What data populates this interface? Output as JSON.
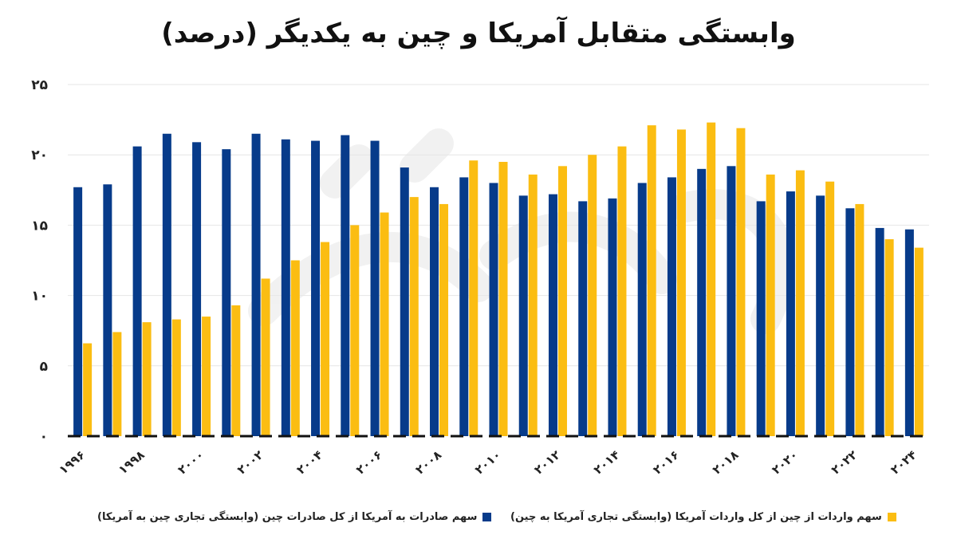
{
  "chart_data": {
    "type": "bar",
    "title": "وابستگی متقابل آمریکا و چین به یکدیگر (درصد)",
    "categories": [
      "1996",
      "1997",
      "1998",
      "1999",
      "2000",
      "2001",
      "2002",
      "2003",
      "2004",
      "2005",
      "2006",
      "2007",
      "2008",
      "2009",
      "2010",
      "2011",
      "2012",
      "2013",
      "2014",
      "2015",
      "2016",
      "2017",
      "2018",
      "2019",
      "2020",
      "2021",
      "2022",
      "2023",
      "2024"
    ],
    "x_tick_labels": [
      "۱۹۹۶",
      "۱۹۹۸",
      "۲۰۰۰",
      "۲۰۰۲",
      "۲۰۰۴",
      "۲۰۰۶",
      "۲۰۰۸",
      "۲۰۱۰",
      "۲۰۱۲",
      "۲۰۱۴",
      "۲۰۱۶",
      "۲۰۱۸",
      "۲۰۲۰",
      "۲۰۲۲",
      "۲۰۲۴"
    ],
    "y_tick_labels": [
      "۰",
      "۵",
      "۱۰",
      "۱۵",
      "۲۰",
      "۲۵"
    ],
    "ylim": [
      0,
      25
    ],
    "grid": true,
    "legend_position": "bottom",
    "series": [
      {
        "name": "سهم صادرات به آمریکا از کل صادرات چین (وابستگی تجاری چین به آمریکا)",
        "color": "#073b8a",
        "values": [
          17.7,
          17.9,
          20.6,
          21.5,
          20.9,
          20.4,
          21.5,
          21.1,
          21.0,
          21.4,
          21.0,
          19.1,
          17.7,
          18.4,
          18.0,
          17.1,
          17.2,
          16.7,
          16.9,
          18.0,
          18.4,
          19.0,
          19.2,
          16.7,
          17.4,
          17.1,
          16.2,
          14.8,
          14.7
        ]
      },
      {
        "name": "سهم واردات از چین از کل واردات آمریکا (وابستگی تجاری آمریکا به چین)",
        "color": "#fbbd12",
        "values": [
          6.6,
          7.4,
          8.1,
          8.3,
          8.5,
          9.3,
          11.2,
          12.5,
          13.8,
          15.0,
          15.9,
          17.0,
          16.5,
          19.6,
          19.5,
          18.6,
          19.2,
          20.0,
          20.6,
          22.1,
          21.8,
          22.3,
          21.9,
          18.6,
          18.9,
          18.1,
          16.5,
          14.0,
          13.4
        ]
      }
    ]
  }
}
